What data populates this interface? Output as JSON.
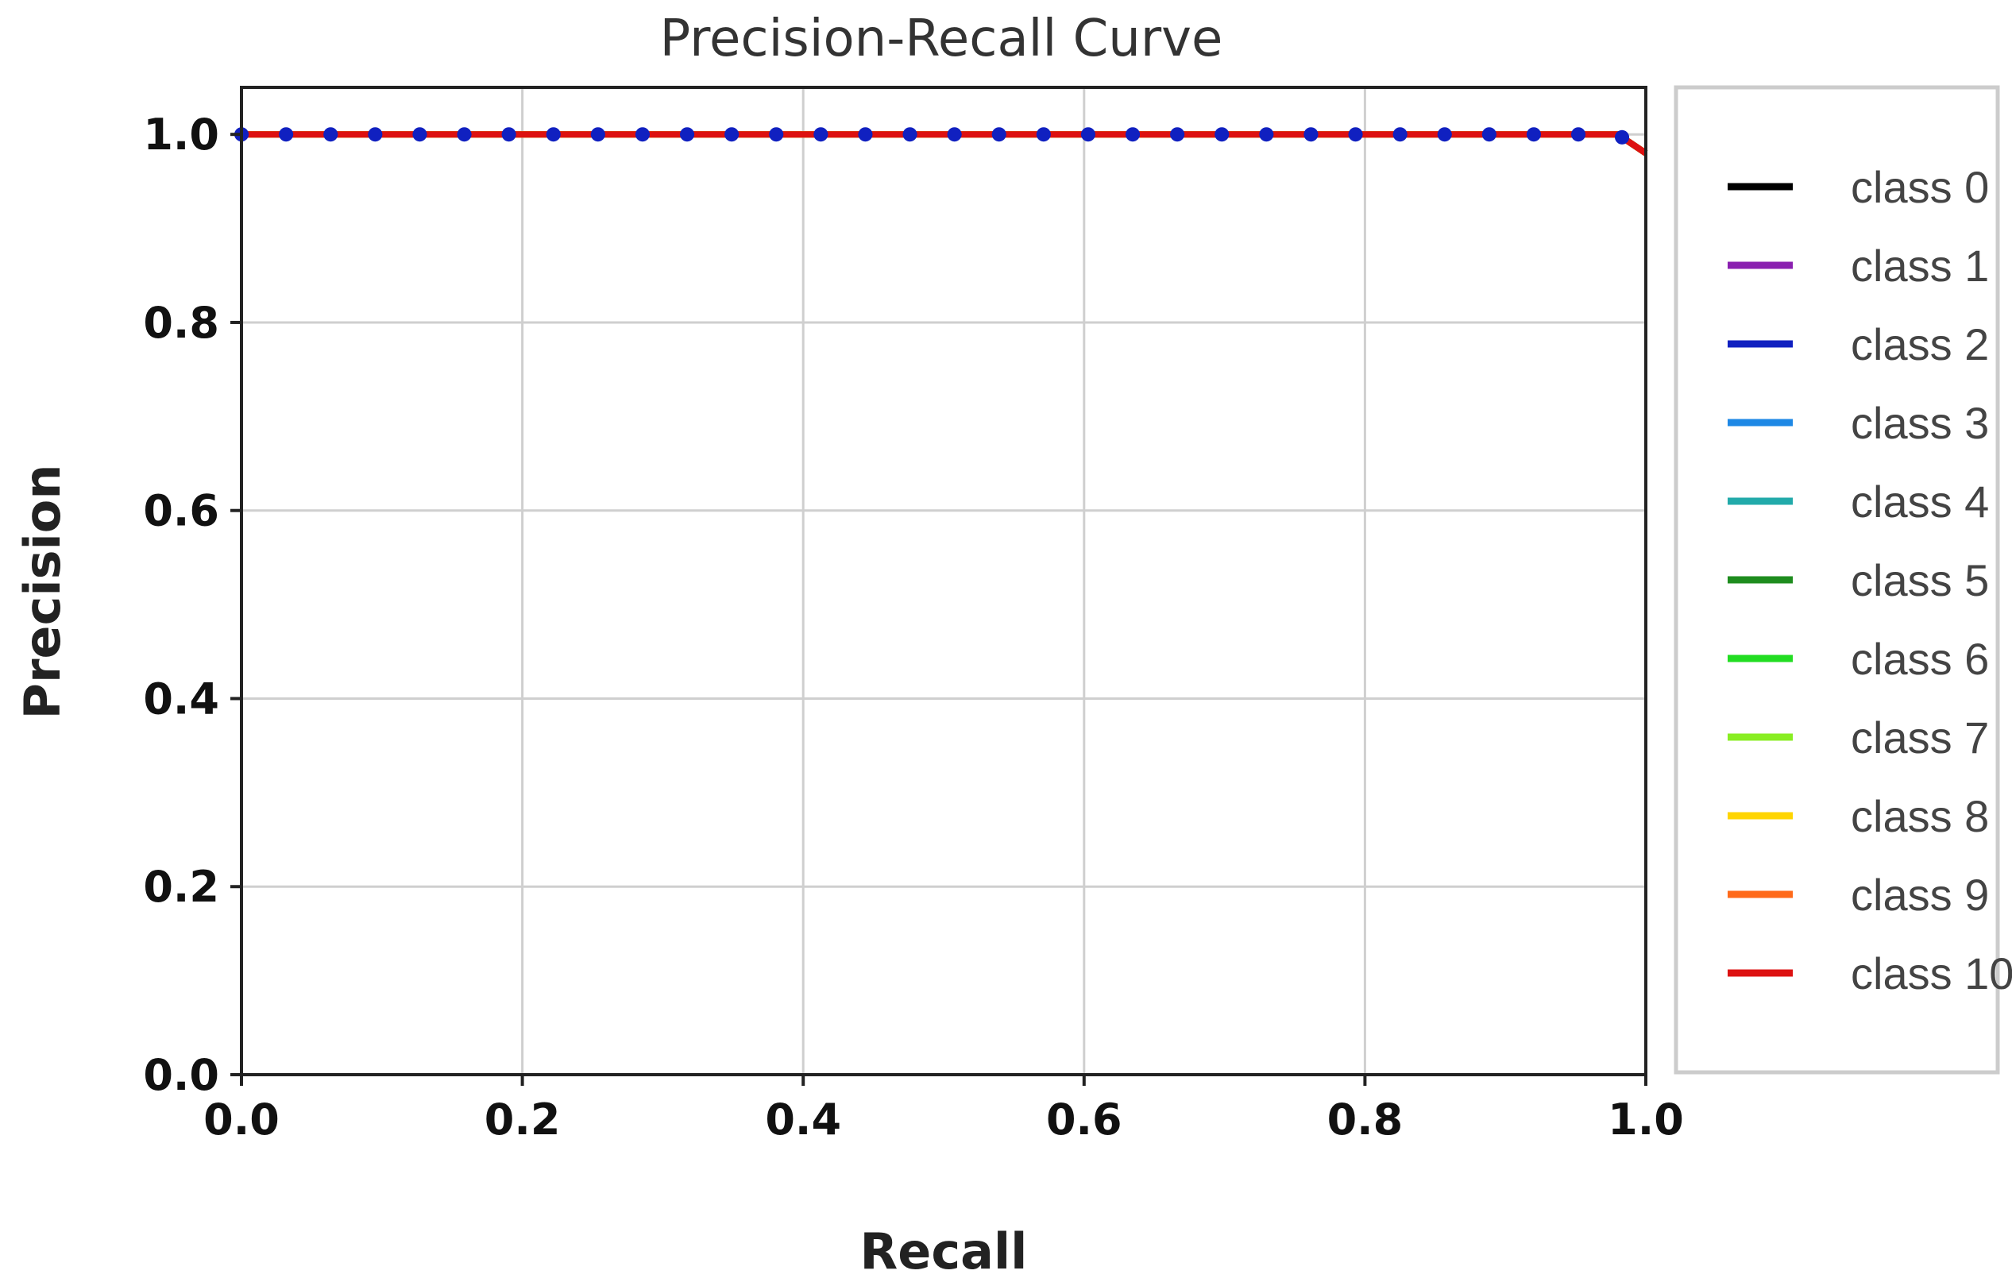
{
  "chart_data": {
    "type": "line",
    "title": "Precision-Recall Curve",
    "xlabel": "Recall",
    "ylabel": "Precision",
    "xlim": [
      0.0,
      1.0
    ],
    "ylim": [
      0.0,
      1.05
    ],
    "xticks": [
      "0.0",
      "0.2",
      "0.4",
      "0.6",
      "0.8",
      "1.0"
    ],
    "yticks": [
      "0.0",
      "0.2",
      "0.4",
      "0.6",
      "0.8",
      "1.0"
    ],
    "grid": true,
    "legend_position": "right, outside plot",
    "series": [
      {
        "name": "class 0",
        "color": "#000000",
        "style": "solid",
        "x": [
          0.0,
          0.98,
          1.0
        ],
        "y": [
          1.0,
          1.0,
          0.98
        ]
      },
      {
        "name": "class 1",
        "color": "#8a1fb0",
        "style": "solid",
        "x": [
          0.0,
          0.98,
          1.0
        ],
        "y": [
          1.0,
          1.0,
          0.98
        ]
      },
      {
        "name": "class 2",
        "color": "#1020c0",
        "style": "dotted",
        "x": [
          0.0,
          0.98,
          1.0
        ],
        "y": [
          1.0,
          1.0,
          0.98
        ]
      },
      {
        "name": "class 3",
        "color": "#1e88e5",
        "style": "solid",
        "x": [
          0.0,
          0.98,
          1.0
        ],
        "y": [
          1.0,
          1.0,
          0.98
        ]
      },
      {
        "name": "class 4",
        "color": "#22aaaa",
        "style": "solid",
        "x": [
          0.0,
          0.98,
          1.0
        ],
        "y": [
          1.0,
          1.0,
          0.98
        ]
      },
      {
        "name": "class 5",
        "color": "#1e8c1e",
        "style": "solid",
        "x": [
          0.0,
          0.98,
          1.0
        ],
        "y": [
          1.0,
          1.0,
          0.98
        ]
      },
      {
        "name": "class 6",
        "color": "#22dd22",
        "style": "solid",
        "x": [
          0.0,
          0.98,
          1.0
        ],
        "y": [
          1.0,
          1.0,
          0.98
        ]
      },
      {
        "name": "class 7",
        "color": "#88ee22",
        "style": "solid",
        "x": [
          0.0,
          0.98,
          1.0
        ],
        "y": [
          1.0,
          1.0,
          0.98
        ]
      },
      {
        "name": "class 8",
        "color": "#ffd500",
        "style": "solid",
        "x": [
          0.0,
          0.98,
          1.0
        ],
        "y": [
          1.0,
          1.0,
          0.98
        ]
      },
      {
        "name": "class 9",
        "color": "#ff6a1a",
        "style": "solid",
        "x": [
          0.0,
          0.98,
          1.0
        ],
        "y": [
          1.0,
          1.0,
          0.98
        ]
      },
      {
        "name": "class 10",
        "color": "#dd1111",
        "style": "solid",
        "x": [
          0.0,
          0.98,
          1.0
        ],
        "y": [
          1.0,
          1.0,
          0.98
        ]
      }
    ]
  }
}
